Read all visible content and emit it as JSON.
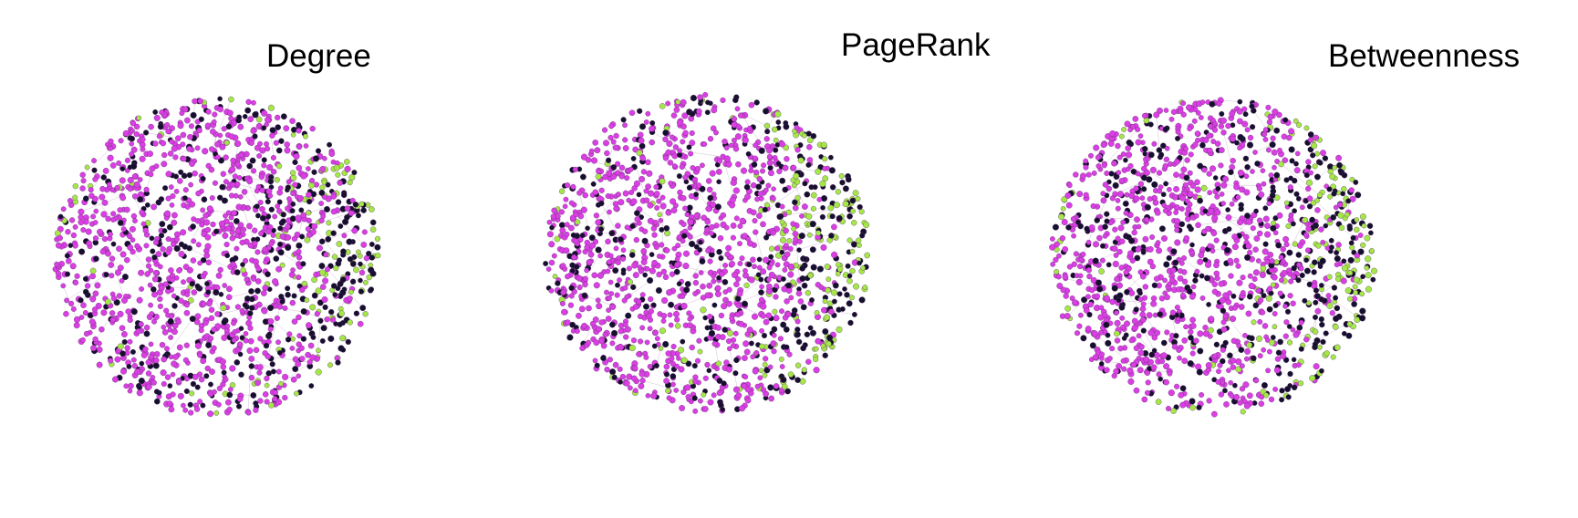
{
  "figure": {
    "panels": [
      {
        "title": "Degree"
      },
      {
        "title": "PageRank"
      },
      {
        "title": "Betweenness"
      }
    ],
    "node_colors": {
      "magenta": "#d93fe3",
      "dark": "#15102e",
      "green": "#a4e848"
    },
    "edge_color": "#7a4a86"
  }
}
